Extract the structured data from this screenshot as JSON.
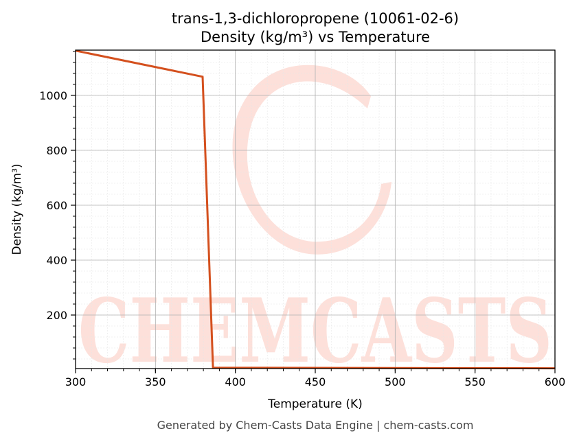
{
  "chart_data": {
    "type": "line",
    "title_line1": "trans-1,3-dichloropropene (10061-02-6)",
    "title_line2": "Density (kg/m³) vs Temperature",
    "xlabel": "Temperature (K)",
    "ylabel": "Density (kg/m³)",
    "xlim": [
      300,
      600
    ],
    "ylim": [
      5,
      1165
    ],
    "xticks": [
      300,
      350,
      400,
      450,
      500,
      550,
      600
    ],
    "yticks": [
      200,
      400,
      600,
      800,
      1000
    ],
    "grid": true,
    "line_color": "#d4501e",
    "series": [
      {
        "x": [
          300,
          379.5,
          386,
          600
        ],
        "y": [
          1163,
          1068,
          8,
          6
        ]
      }
    ]
  },
  "watermark": {
    "text": "CHEMCASTS",
    "color": "#fde0da"
  },
  "footer": "Generated by Chem-Casts Data Engine | chem-casts.com"
}
